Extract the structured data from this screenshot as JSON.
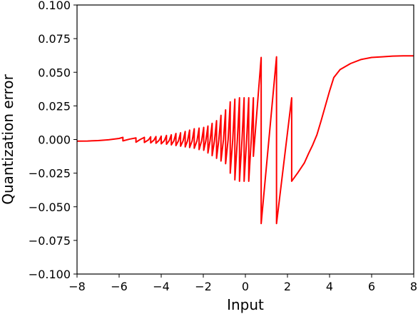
{
  "chart_data": {
    "type": "line",
    "title": "",
    "xlabel": "Input",
    "ylabel": "Quantization error",
    "xlim": [
      -8,
      8
    ],
    "ylim": [
      -0.1,
      0.1
    ],
    "grid": false,
    "legend": "none",
    "line_color": "#ff0000",
    "x_ticks": [
      -8,
      -6,
      -4,
      -2,
      0,
      2,
      4,
      6,
      8
    ],
    "x_tick_labels": [
      "−8",
      "−6",
      "−4",
      "−2",
      "0",
      "2",
      "4",
      "6",
      "8"
    ],
    "y_ticks": [
      -0.1,
      -0.075,
      -0.05,
      -0.025,
      0.0,
      0.025,
      0.05,
      0.075,
      0.1
    ],
    "y_tick_labels": [
      "−0.100",
      "−0.075",
      "−0.050",
      "−0.025",
      "0.000",
      "0.025",
      "0.050",
      "0.075",
      "0.100"
    ],
    "series": [
      {
        "x": [
          -8.0,
          -7.5,
          -7.0,
          -6.5,
          -6.0,
          -5.82,
          -5.82,
          -5.5,
          -5.2,
          -5.2,
          -5.0,
          -4.8,
          -4.8,
          -4.6,
          -4.5,
          -4.5,
          -4.35,
          -4.25,
          -4.25,
          -4.1,
          -4.0,
          -4.0,
          -3.85,
          -3.75,
          -3.75,
          -3.62,
          -3.52,
          -3.52,
          -3.4,
          -3.3,
          -3.3,
          -3.18,
          -3.08,
          -3.08,
          -2.96,
          -2.86,
          -2.86,
          -2.75,
          -2.65,
          -2.65,
          -2.53,
          -2.43,
          -2.43,
          -2.3,
          -2.2,
          -2.2,
          -2.08,
          -1.98,
          -1.98,
          -1.88,
          -1.78,
          -1.78,
          -1.68,
          -1.58,
          -1.58,
          -1.47,
          -1.37,
          -1.37,
          -1.26,
          -1.16,
          -1.16,
          -1.04,
          -0.94,
          -0.94,
          -0.82,
          -0.72,
          -0.72,
          -0.6,
          -0.5,
          -0.5,
          -0.38,
          -0.28,
          -0.28,
          -0.16,
          -0.06,
          -0.06,
          0.06,
          0.16,
          0.16,
          0.28,
          0.38,
          0.38,
          0.75,
          0.75,
          1.48,
          1.48,
          2.2,
          2.2,
          2.5,
          2.8,
          3.0,
          3.2,
          3.4,
          3.6,
          3.8,
          4.0,
          4.2,
          4.5,
          5.0,
          5.5,
          6.0,
          6.5,
          7.0,
          7.5,
          8.0
        ],
        "y": [
          -0.0012,
          -0.0011,
          -0.0008,
          -0.0002,
          0.0008,
          0.0016,
          -0.001,
          0.0003,
          0.0012,
          -0.002,
          0.0,
          0.0016,
          -0.0022,
          -0.0002,
          0.002,
          -0.0025,
          -0.0005,
          0.0022,
          -0.0028,
          -0.0006,
          0.0025,
          -0.0032,
          -0.0008,
          0.003,
          -0.0035,
          -0.0008,
          0.0035,
          -0.004,
          -0.001,
          0.0045,
          -0.0045,
          -0.001,
          0.005,
          -0.005,
          -0.001,
          0.006,
          -0.0055,
          -0.001,
          0.007,
          -0.006,
          -0.001,
          0.008,
          -0.0065,
          -0.001,
          0.0085,
          -0.0075,
          -0.001,
          0.009,
          -0.008,
          -0.001,
          0.01,
          -0.01,
          -0.001,
          0.012,
          -0.012,
          -0.001,
          0.014,
          -0.014,
          0.0,
          0.018,
          -0.016,
          0.0,
          0.022,
          -0.018,
          0.0,
          0.028,
          -0.025,
          0.0,
          0.03,
          -0.03,
          0.0,
          0.031,
          -0.031,
          0.0,
          0.031,
          -0.031,
          0.0,
          0.031,
          -0.031,
          0.0,
          0.031,
          -0.0125,
          0.061,
          -0.0625,
          0.0615,
          -0.0625,
          0.031,
          -0.031,
          -0.0245,
          -0.0175,
          -0.0105,
          -0.004,
          0.0035,
          0.014,
          0.025,
          0.036,
          0.046,
          0.052,
          0.0565,
          0.0595,
          0.061,
          0.0615,
          0.062,
          0.0622,
          0.0622
        ]
      }
    ]
  }
}
